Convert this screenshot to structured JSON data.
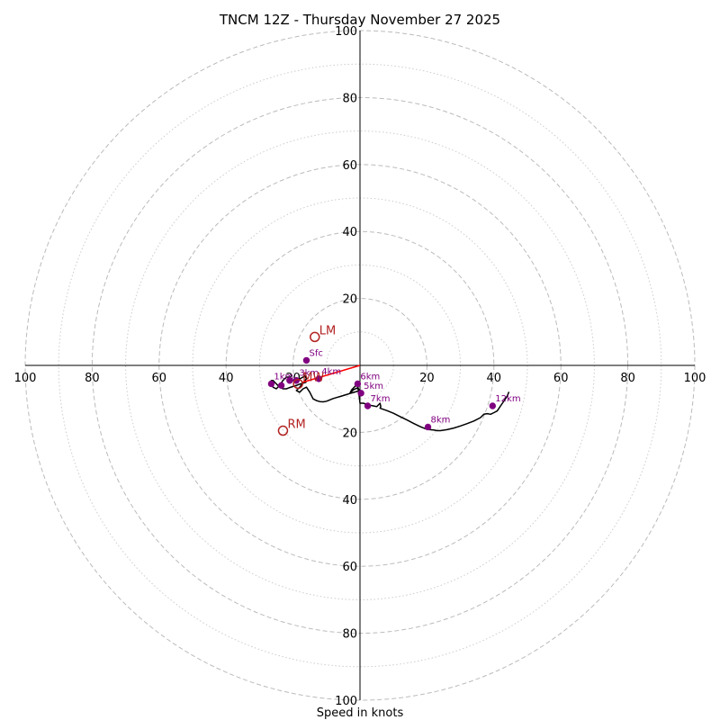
{
  "chart_data": {
    "type": "line",
    "title": "TNCM 12Z - Thursday November 27 2025",
    "xlabel": "Speed in knots",
    "ylabel": "",
    "xlim": [
      -100,
      100
    ],
    "ylim": [
      -100,
      100
    ],
    "rings_major": [
      20,
      40,
      60,
      80,
      100
    ],
    "rings_minor": [
      10,
      30,
      50,
      70,
      90
    ],
    "x_tick_labels": [
      "100",
      "80",
      "60",
      "40",
      "20",
      "20",
      "40",
      "60",
      "80",
      "100"
    ],
    "x_tick_values": [
      -100,
      -80,
      -60,
      -40,
      -20,
      20,
      40,
      60,
      80,
      100
    ],
    "y_tick_labels": [
      "100",
      "80",
      "60",
      "40",
      "20",
      "20",
      "40",
      "60",
      "80",
      "100"
    ],
    "y_tick_values": [
      100,
      80,
      60,
      40,
      20,
      -20,
      -40,
      -60,
      -80,
      -100
    ],
    "series": [
      {
        "name": "hodograph",
        "color": "#000000",
        "x": [
          -16,
          -17,
          -18,
          -19,
          -20,
          -21,
          -21.5,
          -22,
          -23,
          -24,
          -25,
          -26,
          -26.5,
          -26,
          -25,
          -24,
          -23,
          -22,
          -21,
          -20,
          -19,
          -18,
          -17,
          -16.5,
          -16,
          -18,
          -19,
          -18,
          -17,
          -16,
          -15,
          -14,
          -13,
          -12,
          -11,
          -10,
          -9,
          -8,
          -7,
          -6,
          -5,
          -4,
          -3,
          -2,
          -1,
          0,
          -1,
          -2,
          -3,
          -2.5,
          -1.5,
          -1,
          -0.5,
          0,
          1,
          2,
          3,
          4,
          5,
          6,
          6.2,
          6,
          8,
          10,
          12,
          14,
          16,
          18,
          20,
          22,
          23,
          24,
          26,
          28,
          30,
          32,
          34,
          36,
          37,
          38,
          39,
          40,
          41,
          42,
          43,
          44,
          44.5
        ],
        "y": [
          -5,
          -5.3,
          -5.6,
          -6,
          -6.3,
          -6.6,
          -6.8,
          -7,
          -7,
          -6.5,
          -5.5,
          -4.5,
          -4.5,
          -6.5,
          -7,
          -6,
          -4.5,
          -3.5,
          -3.5,
          -4.5,
          -5,
          -4,
          -3.5,
          -3,
          -4,
          -6.5,
          -7.5,
          -8,
          -7,
          -6.5,
          -8,
          -10,
          -10.5,
          -10.8,
          -10.9,
          -10.7,
          -10.3,
          -9.9,
          -9.6,
          -9.3,
          -9,
          -8.7,
          -8.4,
          -8.1,
          -7.8,
          -7.4,
          -6.8,
          -7.3,
          -8.3,
          -7.3,
          -6.3,
          -5.8,
          -6.8,
          -11.3,
          -11.3,
          -11.6,
          -11.9,
          -12.1,
          -12.3,
          -11.3,
          -12.3,
          -12.8,
          -13.5,
          -14.3,
          -15.3,
          -16.3,
          -17.3,
          -18.3,
          -19.1,
          -19.3,
          -19.5,
          -19.5,
          -19.2,
          -18.7,
          -18.1,
          -17.4,
          -16.6,
          -15.6,
          -14.6,
          -14.4,
          -14.6,
          -14.1,
          -13.6,
          -12.1,
          -10.6,
          -9.1,
          -7.9
        ]
      }
    ],
    "height_points": [
      {
        "label": "Sfc",
        "u": -16,
        "v": 1.5
      },
      {
        "label": "1km",
        "u": -26.5,
        "v": -5.5
      },
      {
        "label": "",
        "u": -23.5,
        "v": -6
      },
      {
        "label": "3km",
        "u": -19,
        "v": -4.5
      },
      {
        "label": "",
        "u": -21,
        "v": -4.5
      },
      {
        "label": "4km",
        "u": -12.3,
        "v": -4
      },
      {
        "label": "5km",
        "u": 0.3,
        "v": -8.3
      },
      {
        "label": "6km",
        "u": -0.7,
        "v": -5.5
      },
      {
        "label": "7km",
        "u": 2.3,
        "v": -12.1
      },
      {
        "label": "8km",
        "u": 20.3,
        "v": -18.4
      },
      {
        "label": "12km",
        "u": 39.6,
        "v": -12.1
      }
    ],
    "storm_motion": [
      {
        "label": "LM",
        "u": -13.5,
        "v": 8.5
      },
      {
        "label": "RM",
        "u": -23,
        "v": -19.5
      },
      {
        "label": "MW",
        "u": -18.5,
        "v": -5.5
      }
    ],
    "shear_vector": {
      "from_u": -17,
      "from_v": -5,
      "to_u": 0,
      "to_v": 0,
      "color": "#ff0000"
    }
  }
}
